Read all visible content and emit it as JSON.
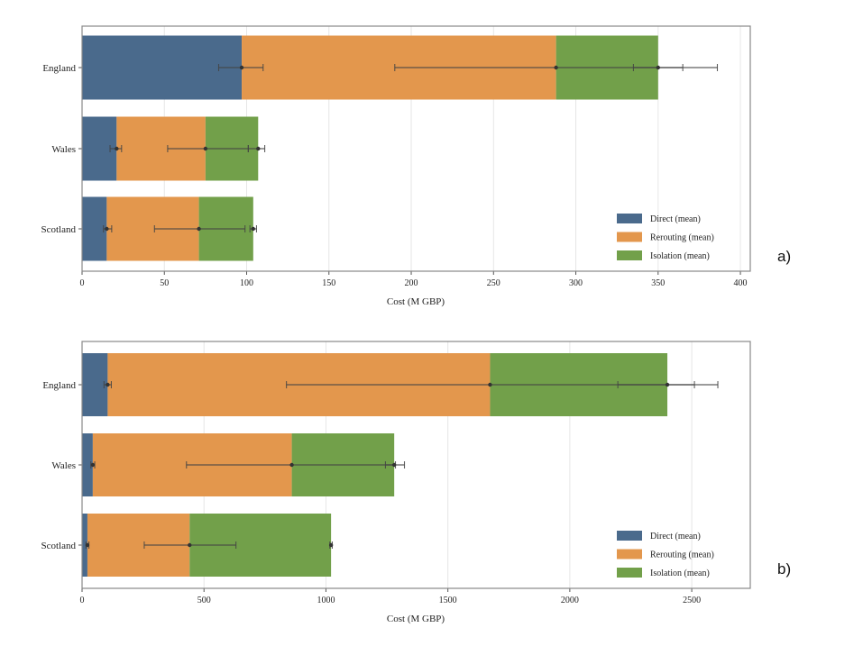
{
  "colors": {
    "Direct (mean)": "#4a6a8c",
    "Rerouting (mean)": "#e3974d",
    "Isolation (mean)": "#72a04a",
    "errorbar": "#444444",
    "grid": "#e6e6e6",
    "frame": "#888888"
  },
  "chart_data": [
    {
      "type": "bar",
      "orientation": "horizontal",
      "stacked": true,
      "panel_label": "a)",
      "categories": [
        "England",
        "Wales",
        "Scotland"
      ],
      "xlabel": "Cost (M GBP)",
      "xlim": [
        0,
        406
      ],
      "xticks": [
        0,
        50,
        100,
        150,
        200,
        250,
        300,
        350,
        400
      ],
      "grid": "vertical",
      "legend_position": "bottom-right",
      "series": [
        {
          "name": "Direct (mean)",
          "values": [
            97,
            21,
            15
          ],
          "error_low": [
            83,
            17,
            13
          ],
          "error_high": [
            110,
            24,
            18
          ]
        },
        {
          "name": "Rerouting (mean)",
          "values": [
            191,
            54,
            56
          ],
          "cumulative_error_low": [
            190,
            52,
            44
          ],
          "cumulative_error_high": [
            386,
            101,
            99
          ]
        },
        {
          "name": "Isolation (mean)",
          "values": [
            62,
            32,
            33
          ],
          "cumulative_error_low": [
            335,
            101,
            102
          ],
          "cumulative_error_high": [
            365,
            111,
            106
          ]
        }
      ]
    },
    {
      "type": "bar",
      "orientation": "horizontal",
      "stacked": true,
      "panel_label": "b)",
      "categories": [
        "England",
        "Wales",
        "Scotland"
      ],
      "xlabel": "Cost (M GBP)",
      "xlim": [
        0,
        2740
      ],
      "xticks": [
        0,
        500,
        1000,
        1500,
        2000,
        2500
      ],
      "grid": "vertical",
      "legend_position": "bottom-right",
      "series": [
        {
          "name": "Direct (mean)",
          "values": [
            105,
            44,
            22
          ],
          "error_low": [
            90,
            36,
            16
          ],
          "error_high": [
            120,
            52,
            28
          ]
        },
        {
          "name": "Rerouting (mean)",
          "values": [
            1568,
            816,
            419
          ],
          "cumulative_error_low": [
            838,
            428,
            255
          ],
          "cumulative_error_high": [
            2607,
            1285,
            631
          ]
        },
        {
          "name": "Isolation (mean)",
          "values": [
            727,
            420,
            580
          ],
          "cumulative_error_low": [
            2197,
            1244,
            1016
          ],
          "cumulative_error_high": [
            2511,
            1322,
            1026
          ]
        }
      ]
    }
  ]
}
